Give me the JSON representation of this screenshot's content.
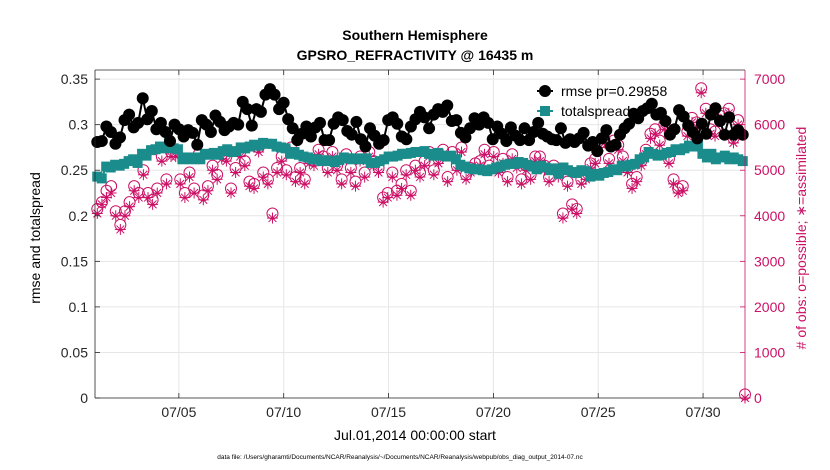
{
  "chart_data": {
    "type": "line",
    "title": "Southern Hemisphere",
    "subtitle": "GPSRO_REFRACTIVITY @ 16435 m",
    "xlabel": "Jul.01,2014 00:00:00 start",
    "ylabel": "rmse and totalspread",
    "ylabel_right": "# of obs: o=possible; ∗=assimilated",
    "footer": "data file: /Users/gharamti/Documents/NCAR/Reanalysis/~/Documents/NCAR/Reanalysis/webpub/obs_diag_output_2014-07.nc",
    "xlim": [
      1,
      32
    ],
    "ylim": [
      0,
      0.36
    ],
    "ylim_right": [
      0,
      7200
    ],
    "x_ticks": [
      5,
      10,
      15,
      20,
      25,
      30
    ],
    "x_tick_labels": [
      "07/05",
      "07/10",
      "07/15",
      "07/20",
      "07/25",
      "07/30"
    ],
    "y_ticks": [
      0,
      0.05,
      0.1,
      0.15,
      0.2,
      0.25,
      0.3,
      0.35
    ],
    "y_tick_labels": [
      "0",
      "0.05",
      "0.1",
      "0.15",
      "0.2",
      "0.25",
      "0.3",
      "0.35"
    ],
    "y_ticks_right": [
      0,
      1000,
      2000,
      3000,
      4000,
      5000,
      6000,
      7000
    ],
    "y_tick_labels_right": [
      "0",
      "1000",
      "2000",
      "3000",
      "4000",
      "5000",
      "6000",
      "7000"
    ],
    "grid": true,
    "legend_position": "top-right",
    "series": [
      {
        "name": "rmse",
        "legend_label": "rmse pr=0.29858",
        "color": "#000000",
        "marker": "filled-circle",
        "axis": "left",
        "values": [
          0.281,
          0.282,
          0.298,
          0.292,
          0.279,
          0.286,
          0.305,
          0.311,
          0.297,
          0.302,
          0.329,
          0.306,
          0.315,
          0.295,
          0.302,
          0.292,
          0.282,
          0.3,
          0.295,
          0.287,
          0.294,
          0.291,
          0.278,
          0.305,
          0.3,
          0.292,
          0.31,
          0.303,
          0.294,
          0.298,
          0.302,
          0.3,
          0.325,
          0.317,
          0.299,
          0.317,
          0.314,
          0.333,
          0.339,
          0.333,
          0.317,
          0.324,
          0.306,
          0.296,
          0.283,
          0.29,
          0.298,
          0.287,
          0.297,
          0.302,
          0.283,
          0.283,
          0.301,
          0.308,
          0.305,
          0.293,
          0.289,
          0.303,
          0.284,
          0.276,
          0.296,
          0.288,
          0.279,
          0.283,
          0.305,
          0.308,
          0.301,
          0.287,
          0.284,
          0.298,
          0.306,
          0.314,
          0.308,
          0.296,
          0.311,
          0.317,
          0.314,
          0.321,
          0.304,
          0.305,
          0.291,
          0.286,
          0.296,
          0.307,
          0.3,
          0.308,
          0.302,
          0.284,
          0.298,
          0.29,
          0.282,
          0.297,
          0.288,
          0.283,
          0.296,
          0.283,
          0.292,
          0.302,
          0.29,
          0.287,
          0.284,
          0.283,
          0.296,
          0.28,
          0.284,
          0.281,
          0.285,
          0.291,
          0.277,
          0.281,
          0.271,
          0.285,
          0.294,
          0.276,
          0.278,
          0.289,
          0.296,
          0.301,
          0.312,
          0.307,
          0.315,
          0.318,
          0.323,
          0.311,
          0.313,
          0.304,
          0.289,
          0.295,
          0.316,
          0.309,
          0.299,
          0.292,
          0.285,
          0.301,
          0.29,
          0.311,
          0.318,
          0.304,
          0.289,
          0.308,
          0.289,
          0.294,
          0.289
        ]
      },
      {
        "name": "totalspread",
        "legend_label": "totalspread",
        "color": "#1a8c8c",
        "marker": "filled-square",
        "axis": "left",
        "values": [
          0.243,
          0.241,
          0.254,
          0.253,
          0.256,
          0.255,
          0.257,
          0.26,
          0.262,
          0.258,
          0.268,
          0.266,
          0.272,
          0.273,
          0.276,
          0.274,
          0.28,
          0.274,
          0.273,
          0.262,
          0.264,
          0.262,
          0.264,
          0.262,
          0.268,
          0.267,
          0.269,
          0.267,
          0.271,
          0.273,
          0.27,
          0.271,
          0.275,
          0.274,
          0.276,
          0.278,
          0.277,
          0.28,
          0.279,
          0.279,
          0.276,
          0.275,
          0.274,
          0.268,
          0.27,
          0.267,
          0.265,
          0.264,
          0.262,
          0.262,
          0.26,
          0.261,
          0.26,
          0.259,
          0.261,
          0.264,
          0.263,
          0.262,
          0.263,
          0.262,
          0.263,
          0.258,
          0.258,
          0.26,
          0.262,
          0.265,
          0.265,
          0.266,
          0.268,
          0.268,
          0.269,
          0.27,
          0.27,
          0.271,
          0.268,
          0.266,
          0.269,
          0.266,
          0.265,
          0.266,
          0.262,
          0.256,
          0.254,
          0.252,
          0.251,
          0.251,
          0.25,
          0.249,
          0.251,
          0.253,
          0.254,
          0.256,
          0.257,
          0.257,
          0.259,
          0.258,
          0.256,
          0.254,
          0.251,
          0.255,
          0.253,
          0.25,
          0.252,
          0.246,
          0.253,
          0.25,
          0.248,
          0.247,
          0.25,
          0.249,
          0.243,
          0.246,
          0.244,
          0.247,
          0.248,
          0.251,
          0.25,
          0.255,
          0.254,
          0.256,
          0.257,
          0.262,
          0.264,
          0.27,
          0.268,
          0.266,
          0.267,
          0.269,
          0.27,
          0.273,
          0.272,
          0.274,
          0.277,
          0.276,
          0.277,
          0.268,
          0.264,
          0.268,
          0.262,
          0.264,
          0.266,
          0.262,
          0.264,
          0.262,
          0.26
        ]
      },
      {
        "name": "obs possible",
        "legend_label": "o=possible",
        "color": "#cc1166",
        "marker": "open-circle",
        "axis": "right",
        "values": [
          4150,
          4300,
          4550,
          4650,
          4100,
          3800,
          4100,
          4300,
          4650,
          4500,
          5000,
          4500,
          4350,
          4600,
          5300,
          4800,
          5400,
          5400,
          4800,
          4500,
          4950,
          4600,
          5350,
          4450,
          4650,
          5100,
          4900,
          5350,
          5300,
          4600,
          5050,
          5400,
          5200,
          4750,
          4700,
          5500,
          4950,
          4800,
          4050,
          5050,
          5300,
          5000,
          5500,
          4850,
          5050,
          4800,
          5250,
          5200,
          5450,
          5300,
          5050,
          5400,
          5100,
          4800,
          5350,
          5050,
          4750,
          5300,
          4950,
          5400,
          5200,
          5050,
          4400,
          4500,
          4950,
          4550,
          4700,
          5000,
          4550,
          5100,
          4950,
          5200,
          5400,
          5000,
          5250,
          5450,
          4850,
          5400,
          5100,
          5500,
          4900,
          5050,
          5150,
          5200,
          5450,
          5100,
          5400,
          5050,
          5250,
          4850,
          5350,
          5150,
          4800,
          5100,
          4900,
          5300,
          5300,
          5100,
          4850,
          5100,
          4950,
          4050,
          4750,
          4250,
          4150,
          4800,
          4900,
          5150,
          5250,
          5600,
          5700,
          5250,
          5650,
          5550,
          5300,
          5050,
          4700,
          4850,
          5200,
          5450,
          5800,
          5900,
          5650,
          6000,
          5250,
          4800,
          4600,
          4650,
          5850,
          6150,
          6050,
          6800,
          6350,
          5900,
          5850,
          6200,
          6250,
          6350,
          5700,
          6100,
          80
        ]
      },
      {
        "name": "obs assimilated",
        "legend_label": "∗=assimilated",
        "color": "#cc1166",
        "marker": "asterisk",
        "axis": "right",
        "values": [
          4050,
          4250,
          4400,
          4500,
          4000,
          3700,
          4000,
          4200,
          4550,
          4400,
          4900,
          4400,
          4250,
          4500,
          5200,
          4700,
          5300,
          5300,
          4700,
          4400,
          4850,
          4500,
          5250,
          4350,
          4550,
          5000,
          4800,
          5250,
          5200,
          4500,
          4950,
          5300,
          5100,
          4650,
          4600,
          5400,
          4850,
          4700,
          3950,
          4950,
          5200,
          4900,
          5400,
          4750,
          4950,
          4700,
          5150,
          5100,
          5350,
          5200,
          4950,
          5300,
          5000,
          4700,
          5250,
          4950,
          4650,
          5200,
          4850,
          5300,
          5100,
          4950,
          4300,
          4400,
          4850,
          4450,
          4600,
          4900,
          4450,
          5000,
          4850,
          5100,
          5300,
          4900,
          5150,
          5350,
          4750,
          5300,
          5000,
          5400,
          4800,
          4950,
          5050,
          5100,
          5350,
          5000,
          5300,
          4950,
          5150,
          4750,
          5250,
          5050,
          4700,
          5000,
          4800,
          5200,
          5200,
          5000,
          4750,
          5000,
          4850,
          3950,
          4650,
          4150,
          4050,
          4700,
          4800,
          5050,
          5150,
          5500,
          5600,
          5150,
          5550,
          5450,
          5200,
          4950,
          4600,
          4750,
          5100,
          5350,
          5700,
          5800,
          5550,
          5900,
          5150,
          4700,
          4500,
          4550,
          5750,
          6050,
          5950,
          6700,
          6250,
          5800,
          5750,
          6100,
          6150,
          6250,
          5600,
          6000,
          0
        ]
      }
    ]
  }
}
